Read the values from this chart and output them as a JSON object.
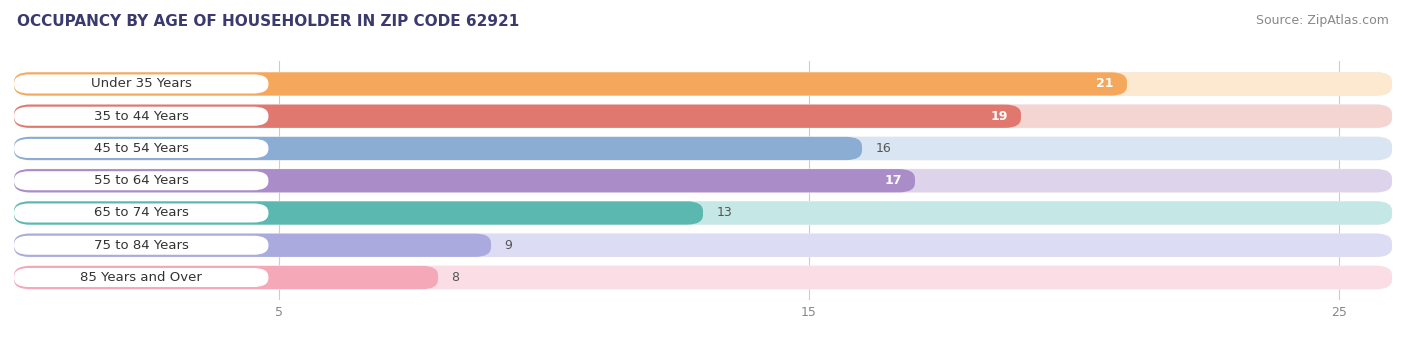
{
  "title": "OCCUPANCY BY AGE OF HOUSEHOLDER IN ZIP CODE 62921",
  "source": "Source: ZipAtlas.com",
  "categories": [
    "Under 35 Years",
    "35 to 44 Years",
    "45 to 54 Years",
    "55 to 64 Years",
    "65 to 74 Years",
    "75 to 84 Years",
    "85 Years and Over"
  ],
  "values": [
    21,
    19,
    16,
    17,
    13,
    9,
    8
  ],
  "bar_colors": [
    "#F5A85B",
    "#E07870",
    "#8BADD4",
    "#A98CC8",
    "#5BB8B0",
    "#AAAADE",
    "#F4A8B8"
  ],
  "bar_bg_colors": [
    "#FDE8D0",
    "#F5D5D2",
    "#D9E5F2",
    "#DDD4EC",
    "#C5E8E6",
    "#DCDCF4",
    "#FBDDE6"
  ],
  "xlim": [
    0,
    26
  ],
  "xticks": [
    5,
    15,
    25
  ],
  "title_fontsize": 11,
  "source_fontsize": 9,
  "label_fontsize": 9.5,
  "value_fontsize": 9,
  "background_color": "#ffffff",
  "row_bg_color": "#f0f0f0",
  "label_bg_color": "#ffffff",
  "value_inside_color": "#ffffff",
  "value_outside_color": "#555555",
  "inside_threshold": 17
}
